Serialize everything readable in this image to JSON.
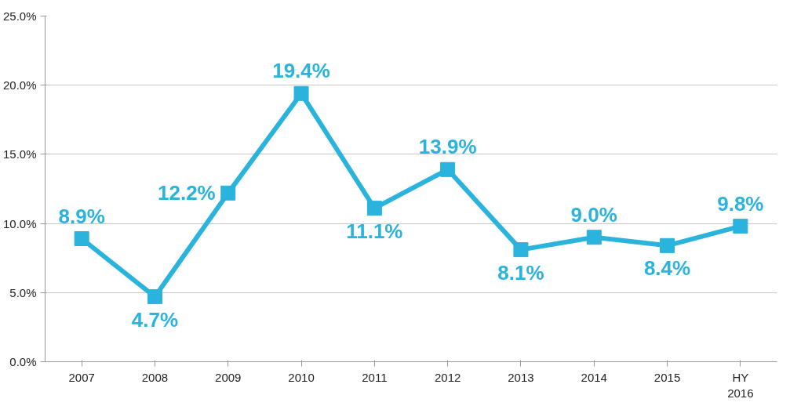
{
  "chart_data": {
    "type": "line",
    "categories": [
      "2007",
      "2008",
      "2009",
      "2010",
      "2011",
      "2012",
      "2013",
      "2014",
      "2015",
      "HY\n2016"
    ],
    "series": [
      {
        "color": "#2ab3dc",
        "values": [
          8.9,
          4.7,
          12.2,
          19.4,
          11.1,
          13.9,
          8.1,
          9.0,
          8.4,
          9.8
        ],
        "value_labels": [
          "8.9%",
          "4.7%",
          "12.2%",
          "19.4%",
          "11.1%",
          "13.9%",
          "8.1%",
          "9.0%",
          "8.4%",
          "9.8%"
        ]
      }
    ],
    "ylim": [
      0,
      25
    ],
    "yticks": [
      {
        "value": 0,
        "label": "0.0%"
      },
      {
        "value": 5,
        "label": "5.0%"
      },
      {
        "value": 10,
        "label": "10.0%"
      },
      {
        "value": 15,
        "label": "15.0%"
      },
      {
        "value": 20,
        "label": "20.0%"
      },
      {
        "value": 25,
        "label": "25.0%"
      }
    ],
    "grid": "y",
    "marker": "square",
    "line_style": "solid"
  }
}
